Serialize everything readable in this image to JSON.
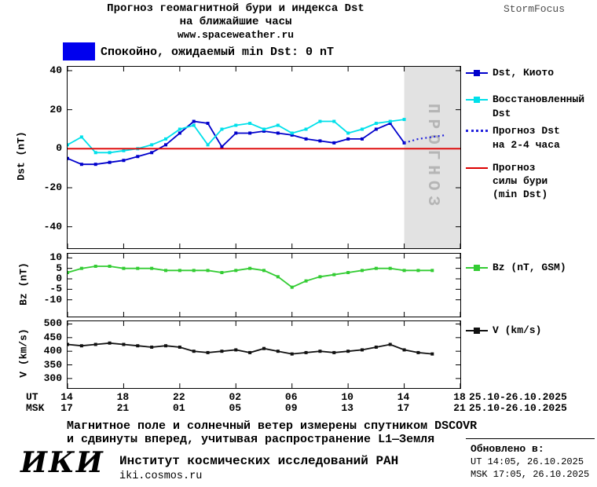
{
  "header": {
    "title_line1": "Прогноз геомагнитной бури и индекса Dst",
    "title_line2": "на ближайшие часы",
    "site": "www.spaceweather.ru",
    "brand": "StormFocus"
  },
  "banner": {
    "text": "Спокойно, ожидаемый min Dst: 0 nT"
  },
  "legend": {
    "kyoto": "Dst, Киото",
    "restored1": "Восстановленный",
    "restored2": "Dst",
    "forecast1": "Прогноз Dst",
    "forecast2": "на 2-4 часа",
    "minDst1": "Прогноз",
    "minDst2": "силы бури",
    "minDst3": "(min Dst)",
    "bz": "Bz (nT, GSM)",
    "v": "V (km/s)"
  },
  "axis": {
    "dst": "Dst (nT)",
    "bz": "Bz (nT)",
    "v": "V (km/s)",
    "ut": "UT",
    "msk": "MSK",
    "ut_ticks": [
      "14",
      "18",
      "22",
      "02",
      "06",
      "10",
      "14",
      "18"
    ],
    "msk_ticks": [
      "17",
      "21",
      "01",
      "05",
      "09",
      "13",
      "17",
      "21"
    ],
    "ut_dates": "25.10-26.10.2025",
    "msk_dates": "25.10-26.10.2025",
    "band": "ПРОГНОЗ"
  },
  "footer": {
    "note1": "Магнитное поле и солнечный ветер измерены спутником DSCOVR",
    "note2": "и сдвинуты вперед, учитывая распространение L1—Земля",
    "logo": "ИКИ",
    "institute": "Институт космических исследований РАН",
    "site": "iki.cosmos.ru",
    "updated_title": "Обновлено в:",
    "updated_ut": "UT  14:05, 26.10.2025",
    "updated_msk": "MSK 17:05, 26.10.2025"
  },
  "colors": {
    "kyoto": "#0000cc",
    "restored": "#00e0ea",
    "forecast": "#2222dd",
    "min_dst": "#dd0000",
    "bz": "#33cc33",
    "v": "#111111",
    "band_bg": "#e2e2e2",
    "band_text": "#b5b5b5",
    "banner_box": "#0000ee",
    "brand_text": "#4d4d4d"
  },
  "chart_data": [
    {
      "type": "line",
      "title": "Dst forecast panel",
      "ylabel": "Dst (nT)",
      "ylim": [
        -51,
        42
      ],
      "yticks": [
        40,
        20,
        0,
        -20,
        -40
      ],
      "xlim": [
        0,
        28
      ],
      "xticks": [
        0,
        4,
        8,
        12,
        16,
        20,
        24,
        28
      ],
      "x_unit": "hours since 14:00 UT 25.10.2025",
      "forecast_band_x": [
        24,
        28
      ],
      "series": [
        {
          "name": "Dst, Киото",
          "color_key": "kyoto",
          "marker": true,
          "x": [
            0,
            1,
            2,
            3,
            4,
            5,
            6,
            7,
            8,
            9,
            10,
            11,
            12,
            13,
            14,
            15,
            16,
            17,
            18,
            19,
            20,
            21,
            22,
            23,
            24
          ],
          "y": [
            -5,
            -8,
            -8,
            -7,
            -6,
            -4,
            -2,
            2,
            8,
            14,
            13,
            1,
            8,
            8,
            9,
            8,
            7,
            5,
            4,
            3,
            5,
            5,
            10,
            13,
            3
          ]
        },
        {
          "name": "Восстановленный Dst",
          "color_key": "restored",
          "marker": true,
          "x": [
            0,
            1,
            2,
            3,
            4,
            5,
            6,
            7,
            8,
            9,
            10,
            11,
            12,
            13,
            14,
            15,
            16,
            17,
            18,
            19,
            20,
            21,
            22,
            23,
            24
          ],
          "y": [
            2,
            6,
            -2,
            -2,
            -1,
            0,
            2,
            5,
            10,
            12,
            2,
            10,
            12,
            13,
            10,
            12,
            8,
            10,
            14,
            14,
            8,
            10,
            13,
            14,
            15
          ]
        },
        {
          "name": "Прогноз Dst на 2-4 часа",
          "color_key": "forecast",
          "dotted": true,
          "x": [
            24,
            25,
            26,
            27
          ],
          "y": [
            3,
            5,
            6,
            7
          ]
        },
        {
          "name": "Прогноз силы бури (min Dst)",
          "color_key": "min_dst",
          "x": [
            0,
            28
          ],
          "y": [
            0,
            0
          ]
        }
      ]
    },
    {
      "type": "line",
      "title": "Bz panel",
      "ylabel": "Bz (nT)",
      "ylim": [
        -18,
        12
      ],
      "yticks": [
        10,
        5,
        0,
        -5,
        -10
      ],
      "xlim": [
        0,
        28
      ],
      "xticks": [
        0,
        4,
        8,
        12,
        16,
        20,
        24,
        28
      ],
      "series": [
        {
          "name": "Bz (nT, GSM)",
          "color_key": "bz",
          "marker": true,
          "x": [
            0,
            1,
            2,
            3,
            4,
            5,
            6,
            7,
            8,
            9,
            10,
            11,
            12,
            13,
            14,
            15,
            16,
            17,
            18,
            19,
            20,
            21,
            22,
            23,
            24,
            25,
            26
          ],
          "y": [
            3,
            5,
            6,
            6,
            5,
            5,
            5,
            4,
            4,
            4,
            4,
            3,
            4,
            5,
            4,
            1,
            -4,
            -1,
            1,
            2,
            3,
            4,
            5,
            5,
            4,
            4,
            4
          ]
        }
      ]
    },
    {
      "type": "line",
      "title": "Solar wind speed panel",
      "ylabel": "V (km/s)",
      "ylim": [
        265,
        510
      ],
      "yticks": [
        500,
        450,
        400,
        350,
        300
      ],
      "xlim": [
        0,
        28
      ],
      "xticks": [
        0,
        4,
        8,
        12,
        16,
        20,
        24,
        28
      ],
      "series": [
        {
          "name": "V (km/s)",
          "color_key": "v",
          "marker": true,
          "x": [
            0,
            1,
            2,
            3,
            4,
            5,
            6,
            7,
            8,
            9,
            10,
            11,
            12,
            13,
            14,
            15,
            16,
            17,
            18,
            19,
            20,
            21,
            22,
            23,
            24,
            25,
            26
          ],
          "y": [
            425,
            420,
            425,
            430,
            425,
            420,
            415,
            420,
            415,
            400,
            395,
            400,
            405,
            395,
            410,
            400,
            390,
            395,
            400,
            395,
            400,
            405,
            415,
            425,
            405,
            395,
            390
          ]
        }
      ]
    }
  ]
}
